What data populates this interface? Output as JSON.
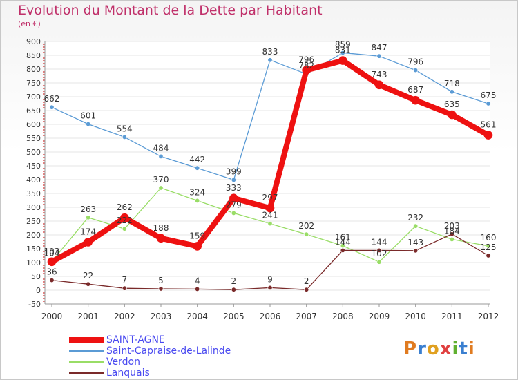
{
  "header": {
    "title": "Evolution du Montant de la Dette par Habitant",
    "subtitle": "(en €)"
  },
  "logo": {
    "letters": [
      "P",
      "r",
      "o",
      "x",
      "i",
      "t",
      "i"
    ],
    "colors": [
      "#e07b20",
      "#3a7fd0",
      "#e0a020",
      "#e04040",
      "#60b030",
      "#3a7fd0",
      "#e07b20"
    ]
  },
  "chart_data": {
    "type": "line",
    "x": [
      "2000",
      "2001",
      "2002",
      "2003",
      "2004",
      "2005",
      "2006",
      "2007",
      "2008",
      "2009",
      "2010",
      "2011",
      "2012"
    ],
    "ylim": [
      -50,
      900
    ],
    "yticks": [
      -50,
      0,
      50,
      100,
      150,
      200,
      250,
      300,
      350,
      400,
      450,
      500,
      550,
      600,
      650,
      700,
      750,
      800,
      850,
      900
    ],
    "grid": "horizontal",
    "legend": "bottom-left",
    "series": [
      {
        "name": "SAINT-AGNE",
        "color": "#ee1111",
        "values": [
          103,
          174,
          262,
          188,
          159,
          333,
          297,
          796,
          831,
          743,
          687,
          635,
          561
        ]
      },
      {
        "name": "Saint-Capraise-de-Lalinde",
        "color": "#5b9bd5",
        "values": [
          662,
          601,
          554,
          484,
          442,
          399,
          833,
          782,
          859,
          847,
          796,
          718,
          675
        ]
      },
      {
        "name": "Verdon",
        "color": "#99dd66",
        "values": [
          104,
          263,
          222,
          370,
          324,
          279,
          241,
          202,
          161,
          102,
          232,
          184,
          160
        ]
      },
      {
        "name": "Lanquais",
        "color": "#7a2a2a",
        "values": [
          36,
          22,
          7,
          5,
          4,
          2,
          9,
          2,
          144,
          144,
          143,
          203,
          125
        ]
      }
    ]
  }
}
